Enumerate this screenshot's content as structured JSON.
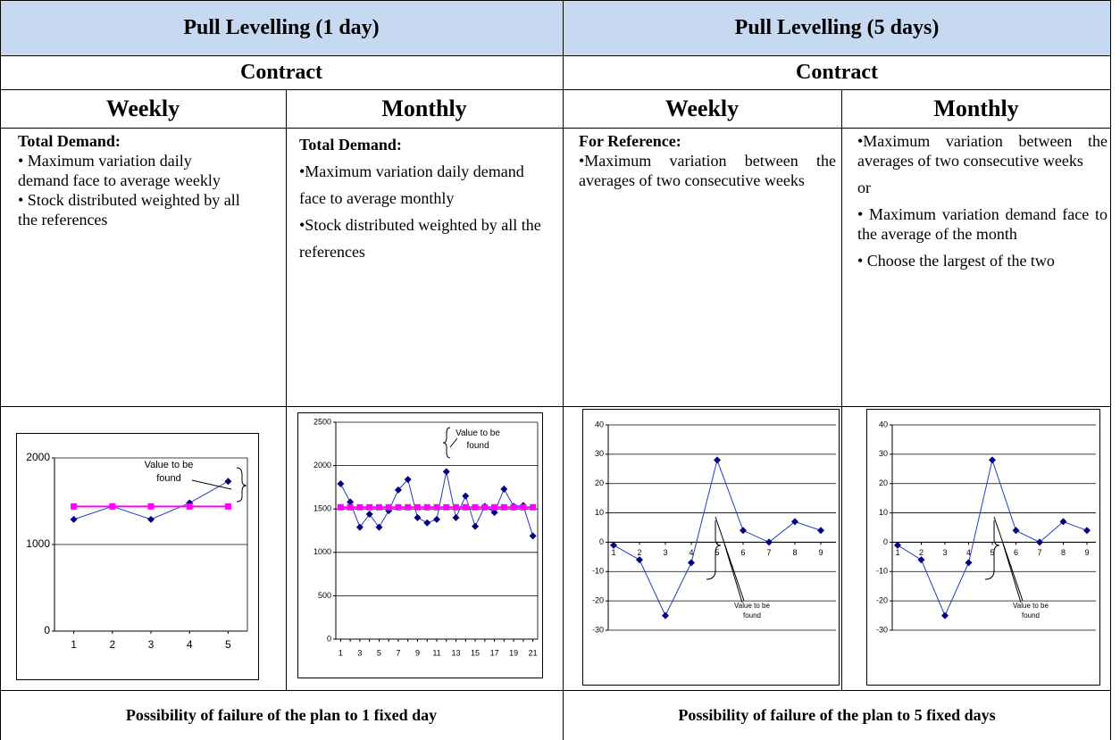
{
  "header": {
    "left": "Pull Levelling (1 day)",
    "right": "Pull Levelling (5 days)"
  },
  "contract": [
    "Contract",
    "Contract"
  ],
  "periods": [
    "Weekly",
    "Monthly",
    "Weekly",
    "Monthly"
  ],
  "cells": [
    {
      "heading": "Total Demand:",
      "items": [
        "• Maximum variation daily demand face to average weekly",
        "• Stock distributed weighted by all the references"
      ]
    },
    {
      "heading": "Total Demand:",
      "items": [
        "•Maximum variation daily demand face to average monthly",
        "•Stock distributed weighted by all the references"
      ]
    },
    {
      "heading": "For Reference:",
      "items": [
        "•Maximum variation between the averages of two consecutive weeks"
      ]
    },
    {
      "items": [
        "•Maximum variation between the averages of two consecutive weeks",
        "or",
        "• Maximum variation demand face to the average of the month",
        "• Choose the largest of the two"
      ]
    }
  ],
  "chart_data": [
    {
      "type": "line",
      "categories": [
        "1",
        "2",
        "3",
        "4",
        "5"
      ],
      "ylim": [
        0,
        2000
      ],
      "yticks": [
        0,
        1000,
        2000
      ],
      "grid": true,
      "series": [
        {
          "color": "#000080",
          "marker": "diamond",
          "values": [
            1290,
            1440,
            1290,
            1480,
            1730
          ]
        },
        {
          "color": "#ff00ff",
          "marker": "square",
          "values": [
            1440,
            1440,
            1440,
            1440,
            1440
          ]
        }
      ],
      "annotation": "Value to be found"
    },
    {
      "type": "line",
      "categories": [
        "1",
        null,
        "3",
        null,
        "5",
        null,
        "7",
        null,
        "9",
        null,
        "11",
        null,
        "13",
        null,
        "15",
        null,
        "17",
        null,
        "19",
        null,
        "21"
      ],
      "ylim": [
        0,
        2500
      ],
      "yticks": [
        0,
        500,
        1000,
        1500,
        2000,
        2500
      ],
      "grid": true,
      "series": [
        {
          "color": "#000080",
          "marker": "diamond",
          "values": [
            1790,
            1580,
            1290,
            1440,
            1290,
            1480,
            1720,
            1840,
            1400,
            1340,
            1380,
            1930,
            1400,
            1650,
            1300,
            1530,
            1460,
            1730,
            1530,
            1540,
            1190
          ]
        },
        {
          "color": "#ff00ff",
          "marker": "square",
          "values": [
            1520,
            1520,
            1520,
            1520,
            1520,
            1520,
            1520,
            1520,
            1520,
            1520,
            1520,
            1520,
            1520,
            1520,
            1520,
            1520,
            1520,
            1520,
            1520,
            1520,
            1520
          ]
        }
      ],
      "annotation": "Value to be found"
    },
    {
      "type": "line",
      "categories": [
        "1",
        "2",
        "3",
        "4",
        "5",
        "6",
        "7",
        "8",
        "9"
      ],
      "ylim": [
        -30,
        40
      ],
      "yticks": [
        -30,
        -20,
        -10,
        0,
        10,
        20,
        30,
        40
      ],
      "grid": true,
      "series": [
        {
          "color": "#000080",
          "marker": "diamond",
          "values": [
            -1,
            -6,
            -25,
            -7,
            28,
            4,
            0,
            7,
            4
          ]
        }
      ],
      "annotation": "Value to be found"
    },
    {
      "type": "line",
      "categories": [
        "1",
        "2",
        "3",
        "4",
        "5",
        "6",
        "7",
        "8",
        "9"
      ],
      "ylim": [
        -30,
        40
      ],
      "yticks": [
        -30,
        -20,
        -10,
        0,
        10,
        20,
        30,
        40
      ],
      "grid": true,
      "series": [
        {
          "color": "#000080",
          "marker": "diamond",
          "values": [
            -1,
            -6,
            -25,
            -7,
            28,
            4,
            0,
            7,
            4
          ]
        }
      ],
      "annotation": "Value to be found"
    }
  ],
  "footer": [
    "Possibility of failure of the plan to 1 fixed day",
    "Possibility of failure of the plan to 5 fixed days"
  ]
}
